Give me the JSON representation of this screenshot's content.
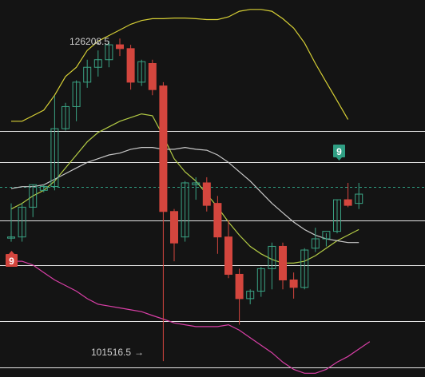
{
  "chart_data": {
    "type": "candlestick",
    "candles": [
      {
        "o": 111020,
        "h": 113590,
        "l": 110660,
        "c": 111020
      },
      {
        "o": 111020,
        "h": 113590,
        "l": 110660,
        "c": 113300
      },
      {
        "o": 113300,
        "h": 115020,
        "l": 112540,
        "c": 115020
      },
      {
        "o": 114590,
        "h": 115020,
        "l": 114440,
        "c": 114880
      },
      {
        "o": 114880,
        "h": 121800,
        "l": 114590,
        "c": 119310
      },
      {
        "o": 119310,
        "h": 121290,
        "l": 119160,
        "c": 121000
      },
      {
        "o": 121000,
        "h": 123010,
        "l": 119880,
        "c": 122870
      },
      {
        "o": 122870,
        "h": 124590,
        "l": 122440,
        "c": 124010
      },
      {
        "o": 124010,
        "h": 125300,
        "l": 123300,
        "c": 124590
      },
      {
        "o": 124590,
        "h": 126010,
        "l": 124010,
        "c": 125730
      },
      {
        "o": 125730,
        "h": 126208.5,
        "l": 124870,
        "c": 125440
      },
      {
        "o": 125440,
        "h": 125730,
        "l": 122300,
        "c": 122870
      },
      {
        "o": 122870,
        "h": 124590,
        "l": 122580,
        "c": 124440
      },
      {
        "o": 124300,
        "h": 124590,
        "l": 121870,
        "c": 122300
      },
      {
        "o": 122580,
        "h": 122870,
        "l": 101516.5,
        "c": 112970
      },
      {
        "o": 112970,
        "h": 113160,
        "l": 109160,
        "c": 110560
      },
      {
        "o": 111020,
        "h": 115300,
        "l": 110660,
        "c": 115160
      },
      {
        "o": 115020,
        "h": 115590,
        "l": 113870,
        "c": 115160
      },
      {
        "o": 115160,
        "h": 115590,
        "l": 112970,
        "c": 113440
      },
      {
        "o": 113590,
        "h": 114160,
        "l": 109730,
        "c": 111020
      },
      {
        "o": 111020,
        "h": 112300,
        "l": 107870,
        "c": 108160
      },
      {
        "o": 108160,
        "h": 108590,
        "l": 104300,
        "c": 106300
      },
      {
        "o": 106300,
        "h": 107010,
        "l": 105870,
        "c": 106870
      },
      {
        "o": 106870,
        "h": 108730,
        "l": 106440,
        "c": 108590
      },
      {
        "o": 108590,
        "h": 110590,
        "l": 107010,
        "c": 110300
      },
      {
        "o": 110300,
        "h": 110590,
        "l": 107010,
        "c": 107730
      },
      {
        "o": 107730,
        "h": 108300,
        "l": 106300,
        "c": 107160
      },
      {
        "o": 107160,
        "h": 110160,
        "l": 107010,
        "c": 110020
      },
      {
        "o": 110160,
        "h": 111730,
        "l": 109870,
        "c": 110880
      },
      {
        "o": 110880,
        "h": 111300,
        "l": 110300,
        "c": 111450
      },
      {
        "o": 111450,
        "h": 113870,
        "l": 111300,
        "c": 113870
      },
      {
        "o": 113870,
        "h": 115160,
        "l": 113300,
        "c": 113440
      },
      {
        "o": 113590,
        "h": 115160,
        "l": 113160,
        "c": 114300
      }
    ],
    "overlays": [
      {
        "color": "#d6cf35",
        "values": [
          119880,
          119880,
          120300,
          120730,
          121870,
          123300,
          124010,
          125300,
          126010,
          126440,
          126870,
          127300,
          127590,
          127730,
          127730,
          127780,
          127780,
          127730,
          127660,
          127660,
          127870,
          128300,
          128440,
          128440,
          128300,
          127730,
          127010,
          125870,
          124300,
          122870,
          121450,
          120010
        ]
      },
      {
        "color": "#b4cc45",
        "values": [
          113160,
          113590,
          114160,
          114590,
          115300,
          116300,
          117300,
          118300,
          119020,
          119450,
          119880,
          120160,
          120440,
          120300,
          118730,
          117010,
          116010,
          115300,
          114300,
          113300,
          112160,
          111160,
          110300,
          109730,
          109300,
          109020,
          109020,
          109160,
          109590,
          110160,
          110730,
          111160,
          111590
        ]
      },
      {
        "color": "#c8c8c8",
        "values": [
          114730,
          114870,
          114870,
          115010,
          115440,
          115870,
          116300,
          116730,
          117010,
          117300,
          117440,
          117730,
          117870,
          117870,
          117730,
          117730,
          117870,
          117730,
          117660,
          117300,
          116730,
          116010,
          115300,
          114440,
          113590,
          112870,
          112160,
          111590,
          111160,
          110870,
          110730,
          110590,
          110590
        ]
      },
      {
        "color": "#d83fa6",
        "values": [
          109160,
          109160,
          108870,
          108300,
          107730,
          107300,
          106870,
          106300,
          105870,
          105730,
          105590,
          105440,
          105300,
          105010,
          104730,
          104440,
          104300,
          104160,
          104160,
          104160,
          104300,
          103880,
          103300,
          102730,
          102160,
          101440,
          100880,
          100590,
          100590,
          100880,
          101440,
          101870,
          102440,
          103010
        ]
      }
    ],
    "ylim": [
      100300,
      129160
    ],
    "hlines": [
      119160,
      116730,
      112300,
      108870,
      104580,
      101010
    ],
    "current_price": 114870,
    "current_price_color": "#2f9e83",
    "up_color": "#3aa384",
    "down_color": "#d4463e",
    "grid": false,
    "annotations": {
      "high_label": "126208.5",
      "high_arrow": "→",
      "low_label": "101516.5",
      "low_arrow": "→"
    },
    "badges": [
      {
        "text": "9",
        "color": "#2f9e83"
      },
      {
        "text": "9",
        "color": "#d4463e"
      }
    ]
  }
}
